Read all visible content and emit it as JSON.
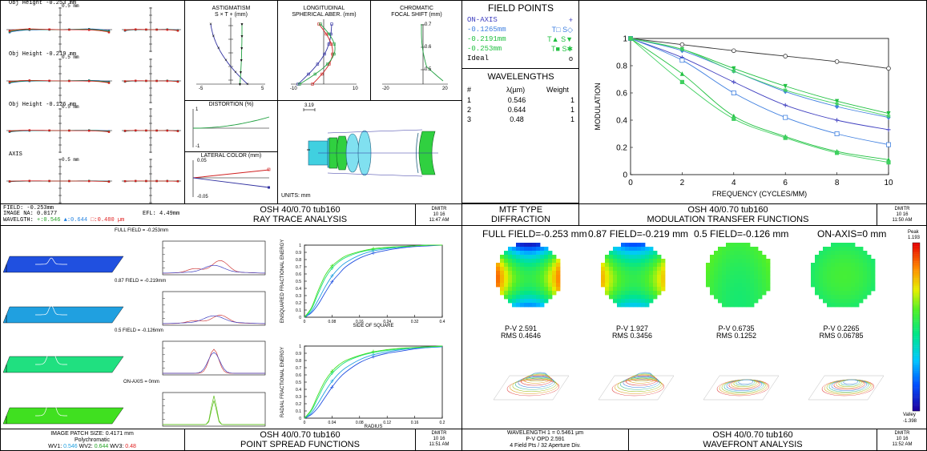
{
  "ray_trace": {
    "plots": [
      {
        "label": "Obj Height -0.253 mm",
        "scale": "0.5 mm"
      },
      {
        "label": "Obj Height -0.219 mm",
        "scale": "0.5 mm"
      },
      {
        "label": "Obj Height -0.126 mm",
        "scale": "0.5 mm"
      },
      {
        "label": "AXIS",
        "scale": "0.5 mm"
      }
    ],
    "field": "FIELD: -0.253mm",
    "image_na": "IMAGE NA: 0.0177",
    "efl": "EFL: 4.49mm",
    "wavelength_prefix": "WAVELGTH:",
    "wl1": "+:0.546",
    "wl2": "▲:0.644",
    "wl3": "□:0.480 µm"
  },
  "astigmatism": {
    "title1": "ASTIGMATISM",
    "title2": "S × T + (mm)",
    "tick_min": "-5",
    "tick_max": "5"
  },
  "spherical": {
    "title1": "LONGITUDINAL",
    "title2": "SPHERICAL ABER. (mm)",
    "tick_min": "-10",
    "tick_max": "10"
  },
  "chromatic": {
    "title1": "CHROMATIC",
    "title2": "FOCAL SHIFT (mm)",
    "y_ticks": [
      "0.7",
      "0.6",
      "0.5"
    ],
    "tick_min": "-20",
    "tick_max": "20"
  },
  "distortion": {
    "title": "DISTORTION (%)",
    "tick_top": "1",
    "tick_bottom": "-1"
  },
  "lateral_color": {
    "title": "LATERAL COLOR (mm)",
    "tick_top": "0.05",
    "tick_bottom": "-0.05"
  },
  "layout_panel": {
    "scale": "3.19",
    "units": "UNITS: mm"
  },
  "field_points": {
    "title": "FIELD POINTS",
    "items": [
      {
        "name": "ON-AXIS",
        "sym": "+",
        "color": "#4040c0"
      },
      {
        "name": "-0.1265mm",
        "sym": "T□ S◇",
        "color": "#4080e0"
      },
      {
        "name": "-0.2191mm",
        "sym": "T▲ S▼",
        "color": "#20c040"
      },
      {
        "name": "-0.253mm",
        "sym": "T■ S✱",
        "color": "#20c040"
      },
      {
        "name": "Ideal",
        "sym": "o",
        "color": "#000000"
      }
    ]
  },
  "wavelengths": {
    "title": "WAVELENGTHS",
    "header_num": "#",
    "header_lambda": "λ(µm)",
    "header_weight": "Weight",
    "rows": [
      {
        "n": "1",
        "l": "0.546",
        "w": "1"
      },
      {
        "n": "2",
        "l": "0.644",
        "w": "1"
      },
      {
        "n": "3",
        "l": "0.48",
        "w": "1"
      }
    ]
  },
  "title_blocks": {
    "ray_trace": {
      "l1": "OSH 40/0.70 tub160",
      "l2": "RAY TRACE ANALYSIS",
      "who": "DMITR",
      "date": "10 16",
      "time": "11:47 AM"
    },
    "mtf_type": {
      "l1": "MTF TYPE",
      "l2": "DIFFRACTION"
    },
    "mtf": {
      "l1": "OSH 40/0.70 tub160",
      "l2": "MODULATION TRANSFER FUNCTIONS",
      "who": "DMITR",
      "date": "10 16",
      "time": "11:50 AM"
    },
    "psf": {
      "l1": "OSH 40/0.70 tub160",
      "l2": "POINT SPREAD FUNCTIONS",
      "who": "DMITR",
      "date": "10 16",
      "time": "11:51 AM"
    },
    "wavefront": {
      "l1": "OSH 40/0.70 tub160",
      "l2": "WAVEFRONT ANALYSIS",
      "who": "DMITR",
      "date": "10 16",
      "time": "11:52 AM"
    }
  },
  "psf": {
    "fields": [
      "FULL FIELD = -0.253mm",
      "0.87 FIELD = -0.219mm",
      "0.5 FIELD = -0.126mm",
      "ON-AXIS = 0mm"
    ],
    "patch": "IMAGE PATCH SIZE: 0.4171 mm",
    "poly": "Polychromatic",
    "wv1_label": "WV1:",
    "wv1": "0.546",
    "wv2_label": "WV2:",
    "wv2": "0.644",
    "wv3_label": "WV3:",
    "wv3": "0.48",
    "colors": [
      "#2050e0",
      "#20a0e0",
      "#20e080",
      "#40e020"
    ]
  },
  "wavefront": {
    "headers": [
      "FULL FIELD=-0.253 mm",
      "0.87 FIELD=-0.219 mm",
      "0.5 FIELD=-0.126 mm",
      "ON-AXIS=0 mm"
    ],
    "stats": [
      {
        "pv": "P-V 2.591",
        "rms": "RMS 0.4646"
      },
      {
        "pv": "P-V 1.927",
        "rms": "RMS 0.3456"
      },
      {
        "pv": "P-V 0.6735",
        "rms": "RMS 0.1252"
      },
      {
        "pv": "P-V 0.2265",
        "rms": "RMS 0.06785"
      }
    ],
    "peak_label": "Peak",
    "peak": "1.193",
    "valley_label": "Valley",
    "valley": "-1.398",
    "footer1": "WAVELENGTH 1 = 0.5461 µm",
    "footer2": "P-V OPD 2.591",
    "footer3": "4 Field Pts / 32 Aperture Div."
  },
  "chart_data": [
    {
      "type": "line",
      "title": "MODULATION TRANSFER FUNCTIONS",
      "xlabel": "FREQUENCY (CYCLES/MM)",
      "ylabel": "MODULATION",
      "xlim": [
        0,
        10
      ],
      "ylim": [
        0,
        1
      ],
      "x_ticks": [
        0,
        2,
        4,
        6,
        8,
        10
      ],
      "y_ticks": [
        0,
        0.2,
        0.4,
        0.6,
        0.8,
        1
      ],
      "x": [
        0,
        2,
        4,
        6,
        8,
        10
      ],
      "series": [
        {
          "name": "Ideal",
          "color": "#333333",
          "marker": "circle",
          "values": [
            1,
            0.955,
            0.91,
            0.87,
            0.83,
            0.78
          ]
        },
        {
          "name": "ON-AXIS",
          "color": "#4040c0",
          "marker": "plus",
          "values": [
            1,
            0.86,
            0.68,
            0.51,
            0.4,
            0.33
          ]
        },
        {
          "name": "-0.1265mm T",
          "color": "#4080e0",
          "marker": "square",
          "values": [
            1,
            0.84,
            0.6,
            0.42,
            0.3,
            0.22
          ]
        },
        {
          "name": "-0.1265mm S",
          "color": "#4080e0",
          "marker": "diamond",
          "values": [
            1,
            0.91,
            0.76,
            0.61,
            0.5,
            0.42
          ]
        },
        {
          "name": "-0.2191mm T",
          "color": "#20c040",
          "marker": "triangle",
          "values": [
            1,
            0.74,
            0.43,
            0.28,
            0.17,
            0.11
          ]
        },
        {
          "name": "-0.2191mm S",
          "color": "#20c040",
          "marker": "triangle-down",
          "values": [
            1,
            0.92,
            0.78,
            0.65,
            0.54,
            0.45
          ]
        },
        {
          "name": "-0.253mm T",
          "color": "#40d060",
          "marker": "filled-square",
          "values": [
            1,
            0.68,
            0.41,
            0.27,
            0.16,
            0.09
          ]
        },
        {
          "name": "-0.253mm S",
          "color": "#40d060",
          "marker": "star",
          "values": [
            1,
            0.92,
            0.76,
            0.62,
            0.52,
            0.43
          ]
        }
      ]
    },
    {
      "type": "line",
      "title": "",
      "xlabel": "SIDE OF SQUARE",
      "ylabel": "ENSQUARED FRACTIONAL ENERGY",
      "xlim": [
        0,
        0.4
      ],
      "ylim": [
        0,
        1
      ],
      "x_ticks": [
        "0",
        "0.08",
        "0.16",
        "0.24",
        "0.32",
        "0.4"
      ],
      "y_ticks": [
        "0",
        "0.1",
        "0.2",
        "0.3",
        "0.4",
        "0.5",
        "0.6",
        "0.7",
        "0.8",
        "0.9",
        "1"
      ],
      "x": [
        0,
        0.02,
        0.04,
        0.06,
        0.08,
        0.1,
        0.12,
        0.16,
        0.2,
        0.24,
        0.28,
        0.32,
        0.36,
        0.4
      ],
      "series": [
        {
          "color": "#2050e0",
          "values": [
            0,
            0.06,
            0.18,
            0.34,
            0.49,
            0.6,
            0.7,
            0.82,
            0.89,
            0.93,
            0.96,
            0.98,
            0.99,
            1
          ]
        },
        {
          "color": "#20a0e0",
          "values": [
            0,
            0.08,
            0.24,
            0.42,
            0.57,
            0.68,
            0.76,
            0.86,
            0.92,
            0.95,
            0.97,
            0.99,
            1,
            1
          ]
        },
        {
          "color": "#20e080",
          "values": [
            0,
            0.11,
            0.33,
            0.54,
            0.68,
            0.77,
            0.83,
            0.9,
            0.94,
            0.96,
            0.98,
            0.99,
            1,
            1
          ]
        },
        {
          "color": "#40e020",
          "values": [
            0,
            0.13,
            0.37,
            0.58,
            0.71,
            0.79,
            0.85,
            0.91,
            0.95,
            0.97,
            0.98,
            0.99,
            1,
            1
          ]
        }
      ]
    },
    {
      "type": "line",
      "title": "",
      "xlabel": "RADIUS",
      "ylabel": "RADIAL FRACTIONAL ENERGY",
      "xlim": [
        0,
        0.2
      ],
      "ylim": [
        0,
        1
      ],
      "x_ticks": [
        "0",
        "0.04",
        "0.08",
        "0.12",
        "0.16",
        "0.2"
      ],
      "y_ticks": [
        "0",
        "0.1",
        "0.2",
        "0.3",
        "0.4",
        "0.5",
        "0.6",
        "0.7",
        "0.8",
        "0.9",
        "1"
      ],
      "x": [
        0,
        0.01,
        0.02,
        0.03,
        0.04,
        0.05,
        0.06,
        0.08,
        0.1,
        0.12,
        0.14,
        0.16,
        0.18,
        0.2
      ],
      "series": [
        {
          "color": "#2050e0",
          "values": [
            0,
            0.05,
            0.15,
            0.29,
            0.43,
            0.55,
            0.64,
            0.77,
            0.85,
            0.9,
            0.93,
            0.96,
            0.98,
            0.99
          ]
        },
        {
          "color": "#20a0e0",
          "values": [
            0,
            0.07,
            0.21,
            0.37,
            0.51,
            0.62,
            0.7,
            0.81,
            0.88,
            0.92,
            0.95,
            0.97,
            0.98,
            0.99
          ]
        },
        {
          "color": "#20e080",
          "values": [
            0,
            0.1,
            0.29,
            0.48,
            0.62,
            0.71,
            0.78,
            0.86,
            0.91,
            0.94,
            0.96,
            0.98,
            0.99,
            1
          ]
        },
        {
          "color": "#40e020",
          "values": [
            0,
            0.12,
            0.33,
            0.52,
            0.65,
            0.74,
            0.8,
            0.87,
            0.92,
            0.95,
            0.97,
            0.98,
            0.99,
            1
          ]
        }
      ]
    }
  ]
}
